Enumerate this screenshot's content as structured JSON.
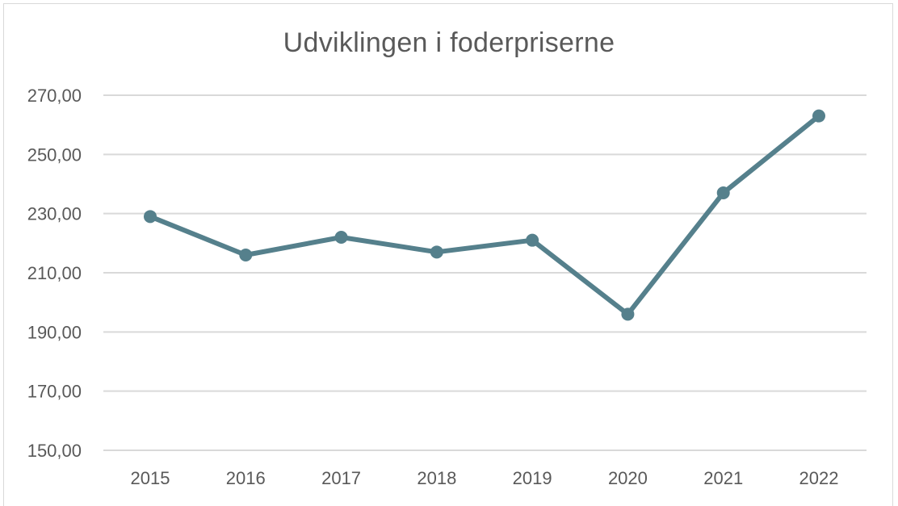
{
  "chart_data": {
    "type": "line",
    "title": "Udviklingen i foderpriserne",
    "categories": [
      "2015",
      "2016",
      "2017",
      "2018",
      "2019",
      "2020",
      "2021",
      "2022"
    ],
    "series": [
      {
        "values": [
          229,
          216,
          222,
          217,
          221,
          196,
          237,
          263
        ]
      }
    ],
    "ylim": [
      150,
      270
    ],
    "yticks": [
      150,
      170,
      190,
      210,
      230,
      250,
      270
    ],
    "ytick_labels": [
      "150,00",
      "170,00",
      "190,00",
      "210,00",
      "230,00",
      "250,00",
      "270,00"
    ],
    "xlabel": "",
    "ylabel": "",
    "grid": "horizontal",
    "legend": "none",
    "colors": {
      "line": "#55808c",
      "grid": "#d9d9d9",
      "text": "#595959"
    }
  }
}
